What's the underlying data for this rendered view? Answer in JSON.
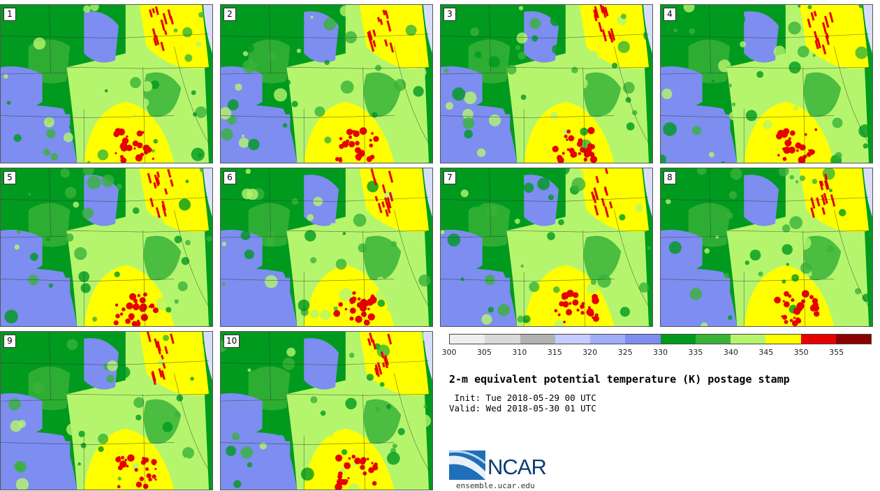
{
  "panels": [
    {
      "number": "1"
    },
    {
      "number": "2"
    },
    {
      "number": "3"
    },
    {
      "number": "4"
    },
    {
      "number": "5"
    },
    {
      "number": "6"
    },
    {
      "number": "7"
    },
    {
      "number": "8"
    },
    {
      "number": "9"
    },
    {
      "number": "10"
    }
  ],
  "colorbar": {
    "colors": [
      "#efefef",
      "#d9d9d9",
      "#b2b2b2",
      "#c5ccff",
      "#a0aef8",
      "#7d8df0",
      "#009a1f",
      "#38b338",
      "#b5f56d",
      "#ffff00",
      "#e60000",
      "#8b0000"
    ],
    "tick_labels": [
      "300",
      "305",
      "310",
      "315",
      "320",
      "325",
      "330",
      "335",
      "340",
      "345",
      "350",
      "355"
    ]
  },
  "title": "2-m equivalent potential temperature (K) postage stamp",
  "init_line": " Init: Tue 2018-05-29 00 UTC",
  "valid_line": "Valid: Wed 2018-05-30 01 UTC",
  "logo": {
    "text": "NCAR",
    "url": "ensemble.ucar.edu"
  }
}
